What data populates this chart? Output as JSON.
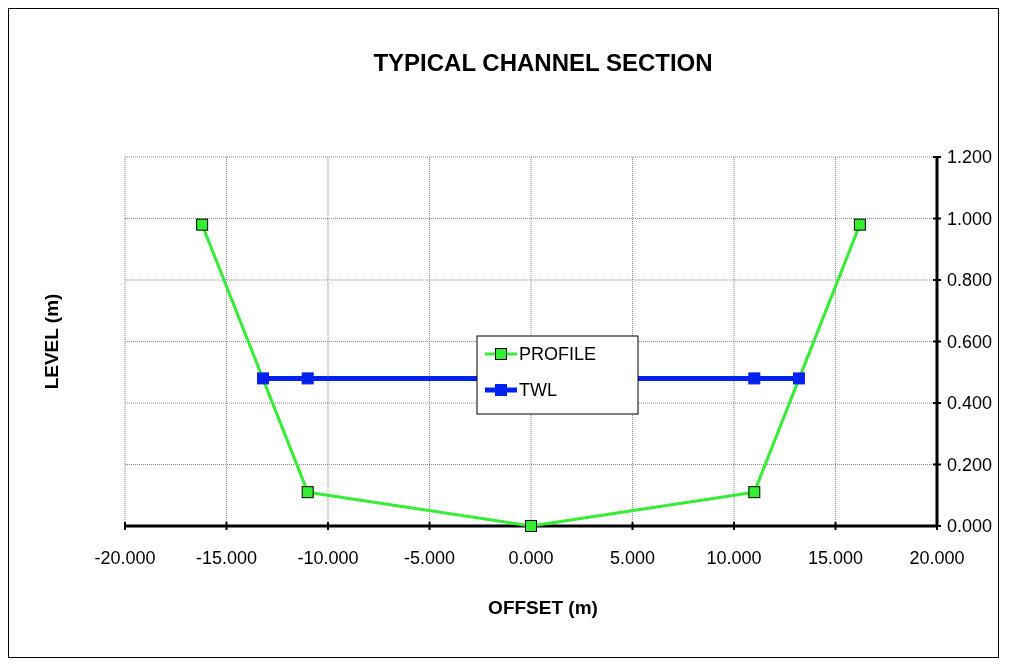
{
  "chart_data": {
    "type": "line",
    "title": "TYPICAL CHANNEL SECTION",
    "xlabel": "OFFSET (m)",
    "ylabel": "LEVEL (m)",
    "series": [
      {
        "name": "PROFILE",
        "color": "#33ee33",
        "x": [
          -16.2,
          -11,
          0,
          11,
          16.2
        ],
        "values": [
          0.98,
          0.11,
          0,
          0.11,
          0.98
        ]
      },
      {
        "name": "TWL",
        "color": "#0022ee",
        "x": [
          -13.2,
          -11,
          11,
          13.2
        ],
        "values": [
          0.48,
          0.48,
          0.48,
          0.48
        ]
      }
    ],
    "xlim": [
      -20,
      20
    ],
    "xticks": [
      {
        "value": -20,
        "label": "-20.000"
      },
      {
        "value": -15,
        "label": "-15.000"
      },
      {
        "value": -10,
        "label": "-10.000"
      },
      {
        "value": -5,
        "label": "-5.000"
      },
      {
        "value": 0,
        "label": "0.000"
      },
      {
        "value": 5,
        "label": "5.000"
      },
      {
        "value": 10,
        "label": "10.000"
      },
      {
        "value": 15,
        "label": "15.000"
      },
      {
        "value": 20,
        "label": "20.000"
      }
    ],
    "ylim": [
      0,
      1.2
    ],
    "yticks": [
      {
        "value": 0,
        "label": "0.000"
      },
      {
        "value": 0.2,
        "label": "0.200"
      },
      {
        "value": 0.4,
        "label": "0.400"
      },
      {
        "value": 0.6,
        "label": "0.600"
      },
      {
        "value": 0.8,
        "label": "0.800"
      },
      {
        "value": 1,
        "label": "1.000"
      },
      {
        "value": 1.2,
        "label": "1.200"
      }
    ],
    "grid": true,
    "legend": "center",
    "marker": "square",
    "line_style": "solid"
  }
}
